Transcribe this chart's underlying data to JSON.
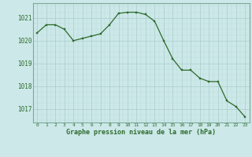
{
  "x": [
    0,
    1,
    2,
    3,
    4,
    5,
    6,
    7,
    8,
    9,
    10,
    11,
    12,
    13,
    14,
    15,
    16,
    17,
    18,
    19,
    20,
    21,
    22,
    23
  ],
  "y": [
    1020.35,
    1020.7,
    1020.7,
    1020.5,
    1020.0,
    1020.1,
    1020.2,
    1020.3,
    1020.7,
    1021.2,
    1021.25,
    1021.25,
    1021.15,
    1020.85,
    1020.0,
    1019.2,
    1018.7,
    1018.7,
    1018.35,
    1018.2,
    1018.2,
    1017.35,
    1017.1,
    1016.65
  ],
  "line_color": "#2d6a2d",
  "marker_color": "#2d6a2d",
  "bg_color": "#cce8e8",
  "grid_color_major": "#aacccc",
  "grid_color_minor": "#bbdddd",
  "xlabel": "Graphe pression niveau de la mer (hPa)",
  "xlabel_color": "#2d6a2d",
  "ylabel_ticks": [
    1017,
    1018,
    1019,
    1020,
    1021
  ],
  "xtick_labels": [
    "0",
    "1",
    "2",
    "3",
    "4",
    "5",
    "6",
    "7",
    "8",
    "9",
    "10",
    "11",
    "12",
    "13",
    "14",
    "15",
    "16",
    "17",
    "18",
    "19",
    "20",
    "21",
    "22",
    "23"
  ],
  "ylim": [
    1016.4,
    1021.65
  ],
  "xlim": [
    -0.5,
    23.5
  ]
}
